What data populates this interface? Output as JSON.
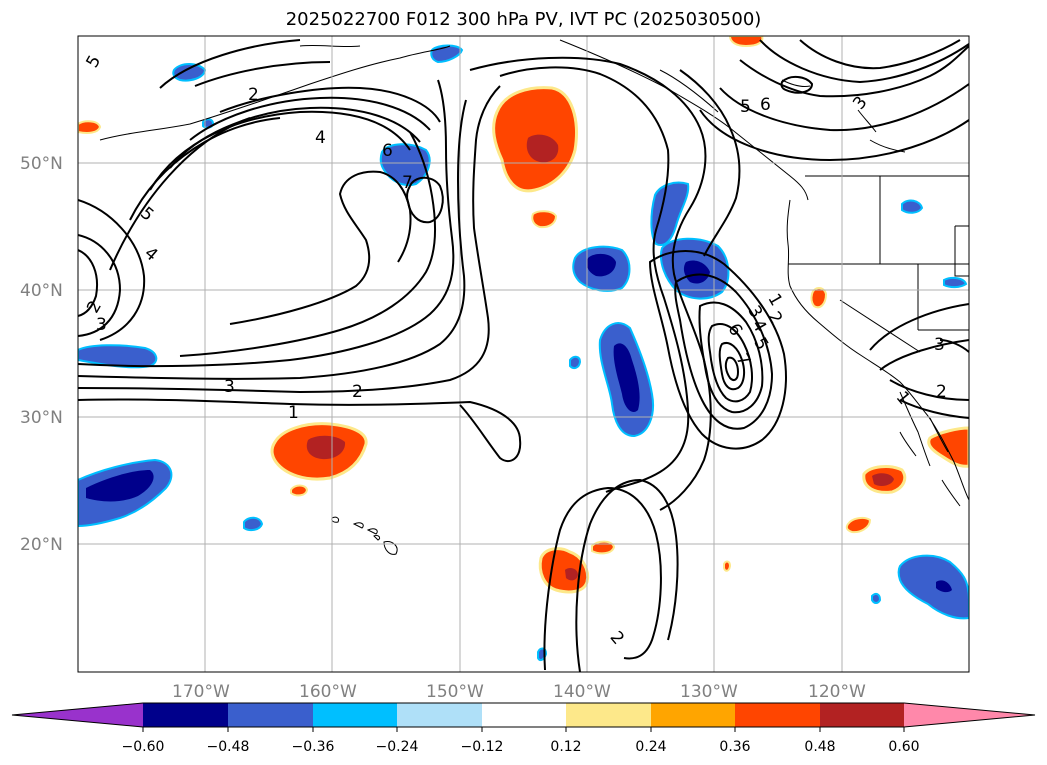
{
  "title": "2025022700 F012 300 hPa PV, IVT PC (2025030500)",
  "latitude_labels": [
    "50°N",
    "40°N",
    "30°N",
    "20°N"
  ],
  "longitude_labels": [
    "170°W",
    "160°W",
    "150°W",
    "140°W",
    "130°W",
    "120°W"
  ],
  "colorbar": {
    "colors": [
      "#9932cc",
      "#00008b",
      "#3a5fcd",
      "#00bfff",
      "#afe0f8",
      "#ffffff",
      "#fde88a",
      "#ffa500",
      "#ff4500",
      "#b22222",
      "#ff88aa"
    ],
    "tick_labels": [
      "−0.60",
      "−0.48",
      "−0.36",
      "−0.24",
      "−0.12",
      "0.12",
      "0.24",
      "0.36",
      "0.48",
      "0.60"
    ]
  },
  "pv_contour_labels": [
    "5",
    "2",
    "4",
    "6",
    "7",
    "5",
    "4",
    "3",
    "3",
    "2",
    "1",
    "2",
    "5",
    "6",
    "3",
    "1",
    "2",
    "3",
    "4",
    "5",
    "6",
    "7",
    "3",
    "2",
    "1"
  ]
}
